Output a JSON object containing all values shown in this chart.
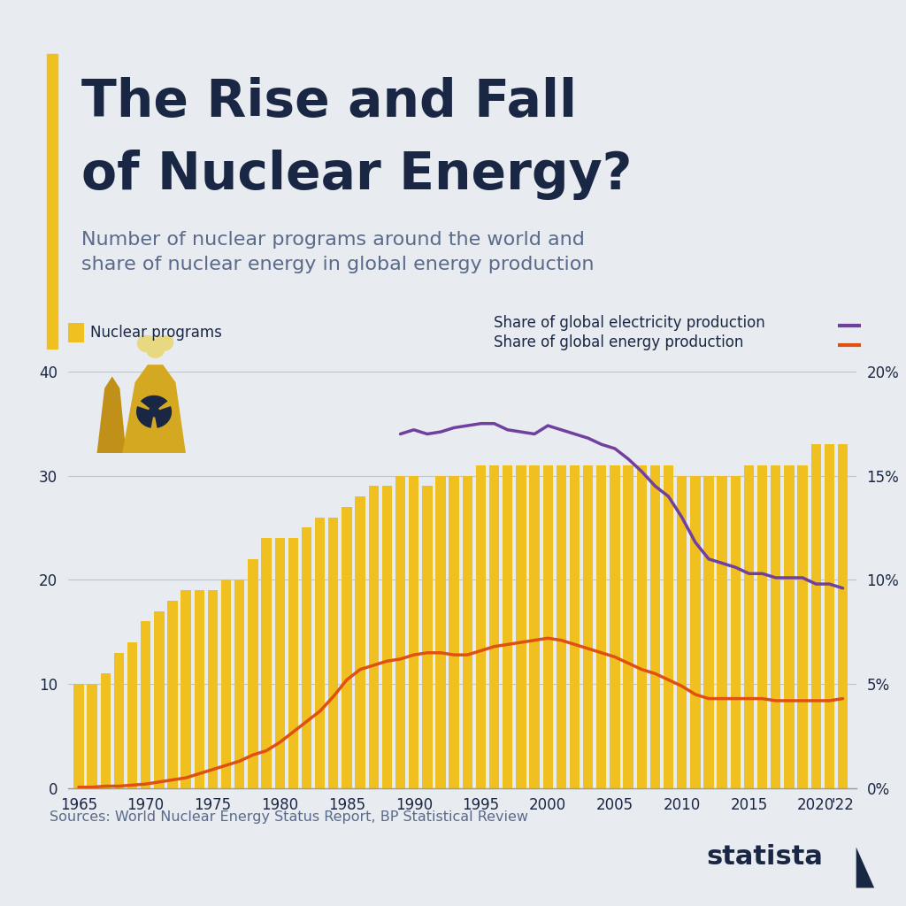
{
  "title_line1": "The Rise and Fall",
  "title_line2": "of Nuclear Energy?",
  "subtitle": "Number of nuclear programs around the world and\nshare of nuclear energy in global energy production",
  "source_text": "Sources: World Nuclear Energy Status Report, BP Statistical Review",
  "background_color": "#e8ebf0",
  "title_color": "#1a2744",
  "subtitle_color": "#5a6a8a",
  "bar_color": "#f0c020",
  "line1_color": "#7040a0",
  "line2_color": "#e05010",
  "years": [
    1965,
    1966,
    1967,
    1968,
    1969,
    1970,
    1971,
    1972,
    1973,
    1974,
    1975,
    1976,
    1977,
    1978,
    1979,
    1980,
    1981,
    1982,
    1983,
    1984,
    1985,
    1986,
    1987,
    1988,
    1989,
    1990,
    1991,
    1992,
    1993,
    1994,
    1995,
    1996,
    1997,
    1998,
    1999,
    2000,
    2001,
    2002,
    2003,
    2004,
    2005,
    2006,
    2007,
    2008,
    2009,
    2010,
    2011,
    2012,
    2013,
    2014,
    2015,
    2016,
    2017,
    2018,
    2019,
    2020,
    2021,
    2022
  ],
  "nuclear_programs": [
    10,
    10,
    11,
    13,
    14,
    16,
    17,
    18,
    19,
    19,
    19,
    20,
    20,
    22,
    24,
    24,
    24,
    25,
    26,
    26,
    27,
    28,
    29,
    29,
    30,
    30,
    29,
    30,
    30,
    30,
    31,
    31,
    31,
    31,
    31,
    31,
    31,
    31,
    31,
    31,
    31,
    31,
    31,
    31,
    31,
    30,
    30,
    30,
    30,
    30,
    31,
    31,
    31,
    31,
    31,
    33,
    33,
    33
  ],
  "elec_share": [
    null,
    null,
    null,
    null,
    null,
    null,
    null,
    null,
    null,
    null,
    null,
    null,
    null,
    null,
    null,
    null,
    null,
    null,
    null,
    null,
    null,
    null,
    null,
    null,
    17.0,
    17.2,
    17.0,
    17.1,
    17.3,
    17.4,
    17.5,
    17.5,
    17.2,
    17.1,
    17.0,
    17.4,
    17.2,
    17.0,
    16.8,
    16.5,
    16.3,
    15.8,
    15.2,
    14.5,
    14.0,
    13.0,
    11.8,
    11.0,
    10.8,
    10.6,
    10.3,
    10.3,
    10.1,
    10.1,
    10.1,
    9.8,
    9.8,
    9.6
  ],
  "energy_share": [
    0.05,
    0.05,
    0.1,
    0.1,
    0.15,
    0.2,
    0.3,
    0.4,
    0.5,
    0.7,
    0.9,
    1.1,
    1.3,
    1.6,
    1.8,
    2.2,
    2.7,
    3.2,
    3.7,
    4.4,
    5.2,
    5.7,
    5.9,
    6.1,
    6.2,
    6.4,
    6.5,
    6.5,
    6.4,
    6.4,
    6.6,
    6.8,
    6.9,
    7.0,
    7.1,
    7.2,
    7.1,
    6.9,
    6.7,
    6.5,
    6.3,
    6.0,
    5.7,
    5.5,
    5.2,
    4.9,
    4.5,
    4.3,
    4.3,
    4.3,
    4.3,
    4.3,
    4.2,
    4.2,
    4.2,
    4.2,
    4.2,
    4.3
  ],
  "ylim_left": [
    0,
    40
  ],
  "ylim_right": [
    0,
    20
  ],
  "yticks_left": [
    0,
    10,
    20,
    30,
    40
  ],
  "yticks_right": [
    0,
    5,
    10,
    15,
    20
  ],
  "ytick_right_labels": [
    "0%",
    "5%",
    "10%",
    "15%",
    "20%"
  ],
  "xtick_labels": [
    "1965",
    "1970",
    "1975",
    "1980",
    "1985",
    "1990",
    "1995",
    "2000",
    "2005",
    "2010",
    "2015",
    "2020",
    "'22"
  ],
  "xtick_positions": [
    1965,
    1970,
    1975,
    1980,
    1985,
    1990,
    1995,
    2000,
    2005,
    2010,
    2015,
    2020,
    2022
  ]
}
